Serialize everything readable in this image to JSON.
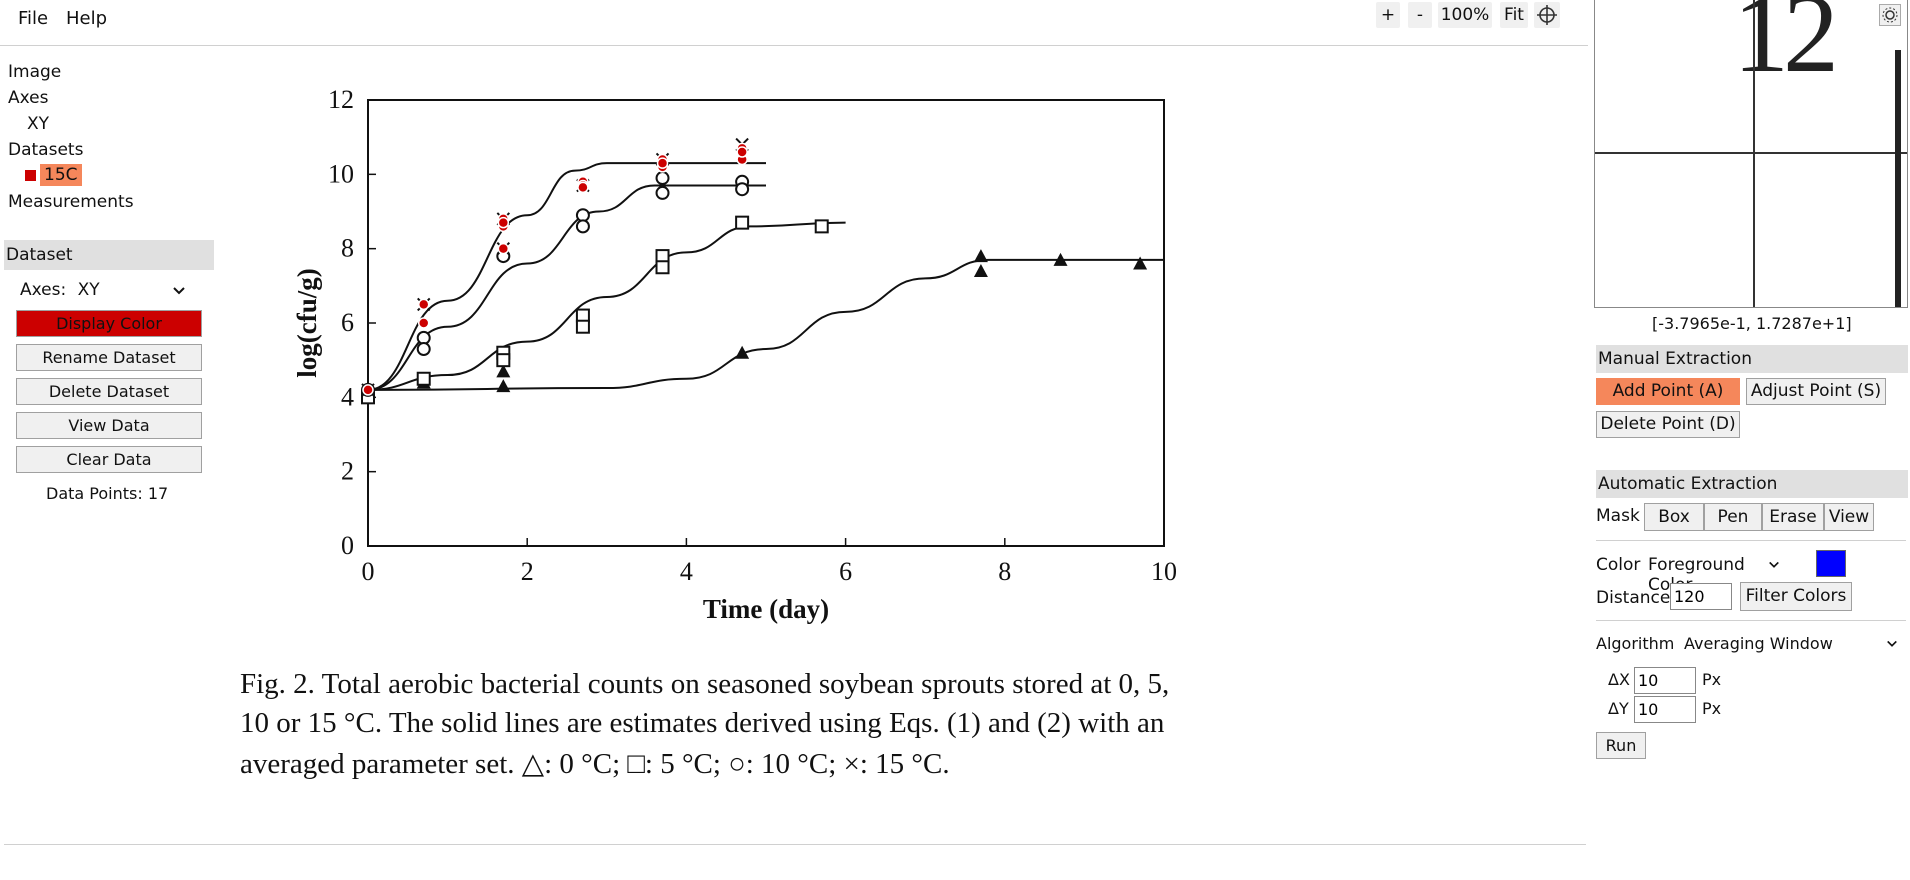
{
  "menu": {
    "file": "File",
    "help": "Help"
  },
  "zoom": {
    "plus": "+",
    "minus": "-",
    "level": "100%",
    "fit": "Fit"
  },
  "tree": {
    "image": "Image",
    "axes": "Axes",
    "axes_child": "XY",
    "datasets": "Datasets",
    "dataset_item": "15C",
    "measurements": "Measurements"
  },
  "dataset_panel": {
    "header": "Dataset",
    "axes_label": "Axes:",
    "axes_value": "XY",
    "display_color": "Display Color",
    "rename": "Rename Dataset",
    "delete": "Delete Dataset",
    "view": "View Data",
    "clear": "Clear Data",
    "data_points": "Data Points: 17"
  },
  "magnifier": {
    "coords": "[-3.7965e-1, 1.7287e+1]",
    "preview_text": "12"
  },
  "manual": {
    "header": "Manual Extraction",
    "add": "Add Point (A)",
    "adjust": "Adjust Point (S)",
    "delete": "Delete Point (D)"
  },
  "automatic": {
    "header": "Automatic Extraction",
    "mask_label": "Mask",
    "box": "Box",
    "pen": "Pen",
    "erase": "Erase",
    "view": "View",
    "color_label": "Color",
    "color_mode": "Foreground Color",
    "distance_label": "Distance",
    "distance_value": "120",
    "filter": "Filter Colors",
    "algorithm_label": "Algorithm",
    "algorithm_value": "Averaging Window",
    "dx_label": "ΔX",
    "dx_value": "10",
    "dy_label": "ΔY",
    "dy_value": "10",
    "px": "Px",
    "run": "Run"
  },
  "colors": {
    "dataset": "#cc0000",
    "active": "#f5875b",
    "foreground_swatch": "#0000ff"
  },
  "figure": {
    "caption_lines": [
      "Fig. 2. Total aerobic bacterial counts on seasoned soybean sprouts stored at 0, 5,",
      "10 or 15 °C. The solid lines are estimates derived using Eqs. (1) and (2) with an",
      "averaged parameter set. △: 0 °C; □: 5 °C; ○: 10 °C; ×: 15 °C."
    ]
  },
  "chart_data": {
    "type": "scatter",
    "title": "",
    "xlabel": "Time (day)",
    "ylabel": "log(cfu/g)",
    "xlim": [
      0,
      10
    ],
    "ylim": [
      0,
      12
    ],
    "xticks": [
      "0",
      "2",
      "4",
      "6",
      "8",
      "10"
    ],
    "yticks": [
      "0",
      "2",
      "4",
      "6",
      "8",
      "10",
      "12"
    ],
    "grid": false,
    "series": [
      {
        "marker": "triangle",
        "points": [
          [
            0,
            4.1
          ],
          [
            0.7,
            4.4
          ],
          [
            1.7,
            4.7
          ],
          [
            1.7,
            4.3
          ],
          [
            4.7,
            5.2
          ],
          [
            7.7,
            7.8
          ],
          [
            7.7,
            7.4
          ],
          [
            8.7,
            7.7
          ],
          [
            9.7,
            7.6
          ]
        ],
        "curve": [
          [
            0,
            4.2
          ],
          [
            3,
            4.25
          ],
          [
            4,
            4.5
          ],
          [
            5,
            5.3
          ],
          [
            6,
            6.3
          ],
          [
            7,
            7.2
          ],
          [
            7.8,
            7.7
          ],
          [
            10,
            7.7
          ]
        ]
      },
      {
        "marker": "square",
        "points": [
          [
            0,
            4.0
          ],
          [
            0.7,
            4.5
          ],
          [
            1.7,
            5.2
          ],
          [
            1.7,
            5.0
          ],
          [
            2.7,
            6.2
          ],
          [
            2.7,
            5.9
          ],
          [
            3.7,
            7.8
          ],
          [
            3.7,
            7.5
          ],
          [
            4.7,
            8.7
          ],
          [
            5.7,
            8.6
          ]
        ],
        "curve": [
          [
            0,
            4.2
          ],
          [
            1,
            4.6
          ],
          [
            2,
            5.5
          ],
          [
            3,
            6.7
          ],
          [
            4,
            7.9
          ],
          [
            4.8,
            8.6
          ],
          [
            6,
            8.7
          ]
        ]
      },
      {
        "marker": "circle",
        "points": [
          [
            0,
            4.2
          ],
          [
            0.7,
            5.6
          ],
          [
            0.7,
            5.3
          ],
          [
            1.7,
            7.8
          ],
          [
            2.7,
            8.9
          ],
          [
            2.7,
            8.6
          ],
          [
            3.7,
            9.9
          ],
          [
            3.7,
            9.5
          ],
          [
            4.7,
            9.8
          ],
          [
            4.7,
            9.6
          ]
        ],
        "curve": [
          [
            0,
            4.2
          ],
          [
            1,
            5.9
          ],
          [
            2,
            7.6
          ],
          [
            2.9,
            9.0
          ],
          [
            3.6,
            9.7
          ],
          [
            5,
            9.7
          ]
        ]
      },
      {
        "marker": "cross",
        "points": [
          [
            0,
            4.2
          ],
          [
            0.7,
            6.5
          ],
          [
            1.7,
            8.8
          ],
          [
            1.7,
            8.0
          ],
          [
            2.7,
            9.7
          ],
          [
            3.7,
            10.4
          ],
          [
            4.7,
            10.8
          ]
        ],
        "curve": [
          [
            0,
            4.2
          ],
          [
            1,
            6.6
          ],
          [
            2,
            8.9
          ],
          [
            2.6,
            10.1
          ],
          [
            3,
            10.3
          ],
          [
            5,
            10.3
          ]
        ]
      }
    ],
    "digitized_points": [
      [
        0,
        4.2
      ],
      [
        0.7,
        6.5
      ],
      [
        0.7,
        6.0
      ],
      [
        1.7,
        8.8
      ],
      [
        1.7,
        8.6
      ],
      [
        1.7,
        8.0
      ],
      [
        2.7,
        9.8
      ],
      [
        2.7,
        9.7
      ],
      [
        3.7,
        10.4
      ],
      [
        3.7,
        10.2
      ],
      [
        4.7,
        10.7
      ],
      [
        4.7,
        10.5
      ],
      [
        4.7,
        10.4
      ],
      [
        1.7,
        8.7
      ],
      [
        2.7,
        9.65
      ],
      [
        3.7,
        10.3
      ],
      [
        4.7,
        10.6
      ]
    ]
  }
}
